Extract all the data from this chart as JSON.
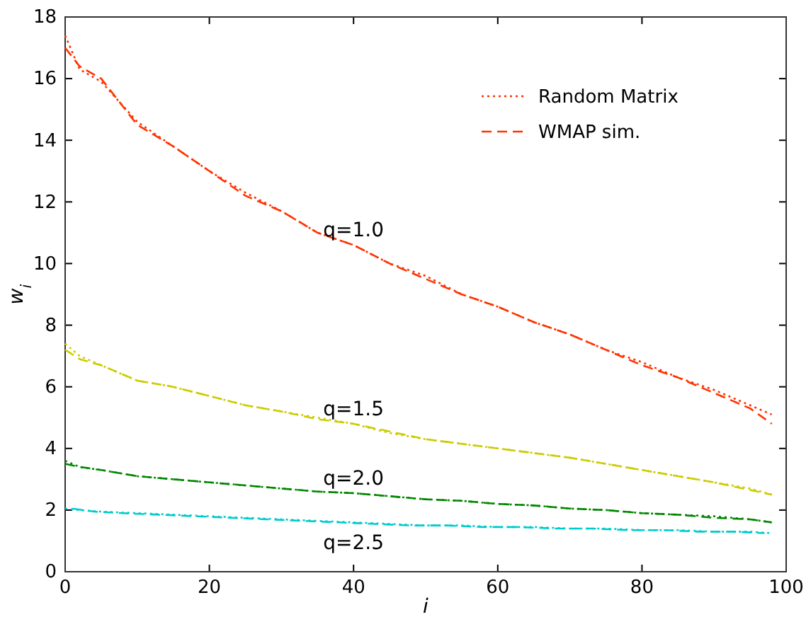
{
  "chart_data": {
    "type": "line",
    "xlabel": "i",
    "ylabel": "w$_{i}$",
    "xlim": [
      0,
      100
    ],
    "ylim": [
      0,
      18
    ],
    "xticks": [
      0,
      20,
      40,
      60,
      80,
      100
    ],
    "yticks": [
      0,
      2,
      4,
      6,
      8,
      10,
      12,
      14,
      16,
      18
    ],
    "grid": false,
    "legend": "top right",
    "marker": "none",
    "x": [
      0,
      2,
      5,
      10,
      15,
      20,
      25,
      30,
      35,
      40,
      45,
      50,
      55,
      60,
      65,
      70,
      75,
      80,
      85,
      90,
      95,
      98
    ],
    "series": [
      {
        "name": "Random Matrix",
        "color": "#ff3300",
        "line_style": "dotted",
        "values": [
          17.4,
          16.3,
          15.9,
          14.6,
          13.8,
          13.0,
          12.3,
          11.7,
          11.0,
          10.6,
          10.0,
          9.6,
          9.0,
          8.6,
          8.1,
          7.7,
          7.2,
          6.8,
          6.3,
          5.9,
          5.4,
          5.1
        ]
      },
      {
        "name": "WMAP sim.",
        "color": "#ff3300",
        "line_style": "dashed",
        "values": [
          17.0,
          16.4,
          16.0,
          14.5,
          13.8,
          13.0,
          12.2,
          11.7,
          11.0,
          10.6,
          10.0,
          9.5,
          9.0,
          8.6,
          8.1,
          7.7,
          7.2,
          6.7,
          6.3,
          5.8,
          5.3,
          4.8
        ]
      },
      {
        "color": "#cccc00",
        "line_style": "dotted",
        "values": [
          7.4,
          7.0,
          6.7,
          6.2,
          6.0,
          5.7,
          5.4,
          5.2,
          5.0,
          4.8,
          4.5,
          4.3,
          4.15,
          4.0,
          3.85,
          3.7,
          3.5,
          3.3,
          3.1,
          2.9,
          2.7,
          2.5
        ]
      },
      {
        "color": "#cccc00",
        "line_style": "dashed",
        "values": [
          7.2,
          6.9,
          6.7,
          6.2,
          6.0,
          5.7,
          5.4,
          5.2,
          4.95,
          4.8,
          4.55,
          4.3,
          4.15,
          4.0,
          3.85,
          3.7,
          3.5,
          3.3,
          3.1,
          2.9,
          2.65,
          2.5
        ]
      },
      {
        "color": "#008800",
        "line_style": "dotted",
        "values": [
          3.6,
          3.4,
          3.3,
          3.1,
          3.0,
          2.9,
          2.8,
          2.7,
          2.6,
          2.55,
          2.45,
          2.35,
          2.3,
          2.2,
          2.15,
          2.05,
          2.0,
          1.9,
          1.85,
          1.8,
          1.7,
          1.6
        ]
      },
      {
        "color": "#008800",
        "line_style": "dashed",
        "values": [
          3.5,
          3.4,
          3.3,
          3.1,
          3.0,
          2.9,
          2.8,
          2.7,
          2.6,
          2.55,
          2.45,
          2.35,
          2.3,
          2.2,
          2.15,
          2.05,
          2.0,
          1.9,
          1.85,
          1.75,
          1.7,
          1.6
        ]
      },
      {
        "color": "#00cccc",
        "line_style": "dotted",
        "values": [
          2.05,
          2.0,
          1.95,
          1.9,
          1.85,
          1.8,
          1.75,
          1.7,
          1.65,
          1.6,
          1.55,
          1.5,
          1.5,
          1.45,
          1.45,
          1.4,
          1.4,
          1.35,
          1.35,
          1.3,
          1.3,
          1.25
        ]
      },
      {
        "color": "#00cccc",
        "line_style": "dashed",
        "x": [
          1,
          4,
          8,
          13,
          18,
          23,
          28,
          33,
          38,
          43,
          48,
          53,
          58,
          63,
          68,
          73,
          78,
          83,
          88,
          93,
          97
        ],
        "values": [
          2.05,
          1.95,
          1.9,
          1.85,
          1.8,
          1.75,
          1.7,
          1.65,
          1.6,
          1.55,
          1.5,
          1.5,
          1.45,
          1.45,
          1.4,
          1.4,
          1.35,
          1.35,
          1.3,
          1.3,
          1.25
        ]
      }
    ],
    "annotations": [
      "q=1.0",
      "q=1.5",
      "q=2.0",
      "q=2.5"
    ]
  }
}
